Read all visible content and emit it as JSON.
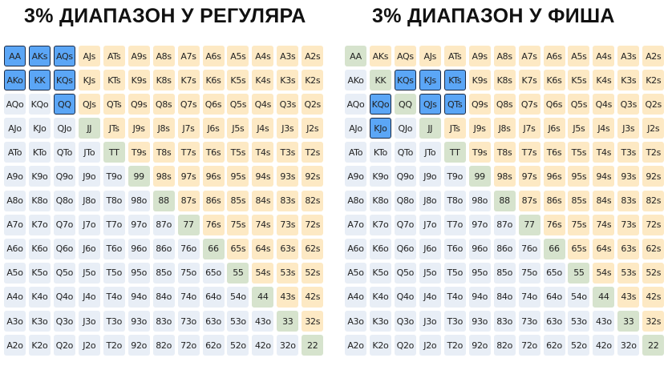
{
  "titles": {
    "left": "3% ДИАПАЗОН У РЕГУЛЯРА",
    "right": "3% ДИАПАЗОН У ФИША"
  },
  "colors": {
    "suited": "#fde9c4",
    "offsuit": "#e8eef6",
    "pair": "#d6e3cd",
    "selected": "#5ba6f6"
  },
  "hands": [
    [
      "AA",
      "AKs",
      "AQs",
      "AJs",
      "ATs",
      "A9s",
      "A8s",
      "A7s",
      "A6s",
      "A5s",
      "A4s",
      "A3s",
      "A2s"
    ],
    [
      "AKo",
      "KK",
      "KQs",
      "KJs",
      "KTs",
      "K9s",
      "K8s",
      "K7s",
      "K6s",
      "K5s",
      "K4s",
      "K3s",
      "K2s"
    ],
    [
      "AQo",
      "KQo",
      "QQ",
      "QJs",
      "QTs",
      "Q9s",
      "Q8s",
      "Q7s",
      "Q6s",
      "Q5s",
      "Q4s",
      "Q3s",
      "Q2s"
    ],
    [
      "AJo",
      "KJo",
      "QJo",
      "JJ",
      "JTs",
      "J9s",
      "J8s",
      "J7s",
      "J6s",
      "J5s",
      "J4s",
      "J3s",
      "J2s"
    ],
    [
      "ATo",
      "KTo",
      "QTo",
      "JTo",
      "TT",
      "T9s",
      "T8s",
      "T7s",
      "T6s",
      "T5s",
      "T4s",
      "T3s",
      "T2s"
    ],
    [
      "A9o",
      "K9o",
      "Q9o",
      "J9o",
      "T9o",
      "99",
      "98s",
      "97s",
      "96s",
      "95s",
      "94s",
      "93s",
      "92s"
    ],
    [
      "A8o",
      "K8o",
      "Q8o",
      "J8o",
      "T8o",
      "98o",
      "88",
      "87s",
      "86s",
      "85s",
      "84s",
      "83s",
      "82s"
    ],
    [
      "A7o",
      "K7o",
      "Q7o",
      "J7o",
      "T7o",
      "97o",
      "87o",
      "77",
      "76s",
      "75s",
      "74s",
      "73s",
      "72s"
    ],
    [
      "A6o",
      "K6o",
      "Q6o",
      "J6o",
      "T6o",
      "96o",
      "86o",
      "76o",
      "66",
      "65s",
      "64s",
      "63s",
      "62s"
    ],
    [
      "A5o",
      "K5o",
      "Q5o",
      "J5o",
      "T5o",
      "95o",
      "85o",
      "75o",
      "65o",
      "55",
      "54s",
      "53s",
      "52s"
    ],
    [
      "A4o",
      "K4o",
      "Q4o",
      "J4o",
      "T4o",
      "94o",
      "84o",
      "74o",
      "64o",
      "54o",
      "44",
      "43s",
      "42s"
    ],
    [
      "A3o",
      "K3o",
      "Q3o",
      "J3o",
      "T3o",
      "93o",
      "83o",
      "73o",
      "63o",
      "53o",
      "43o",
      "33",
      "32s"
    ],
    [
      "A2o",
      "K2o",
      "Q2o",
      "J2o",
      "T2o",
      "92o",
      "82o",
      "72o",
      "62o",
      "52o",
      "42o",
      "32o",
      "22"
    ]
  ],
  "ranges": {
    "left": [
      "AA",
      "AKs",
      "AQs",
      "AKo",
      "KK",
      "KQs",
      "QQ"
    ],
    "right": [
      "KQs",
      "KJs",
      "KTs",
      "KQo",
      "QJs",
      "QTs",
      "KJo"
    ]
  }
}
